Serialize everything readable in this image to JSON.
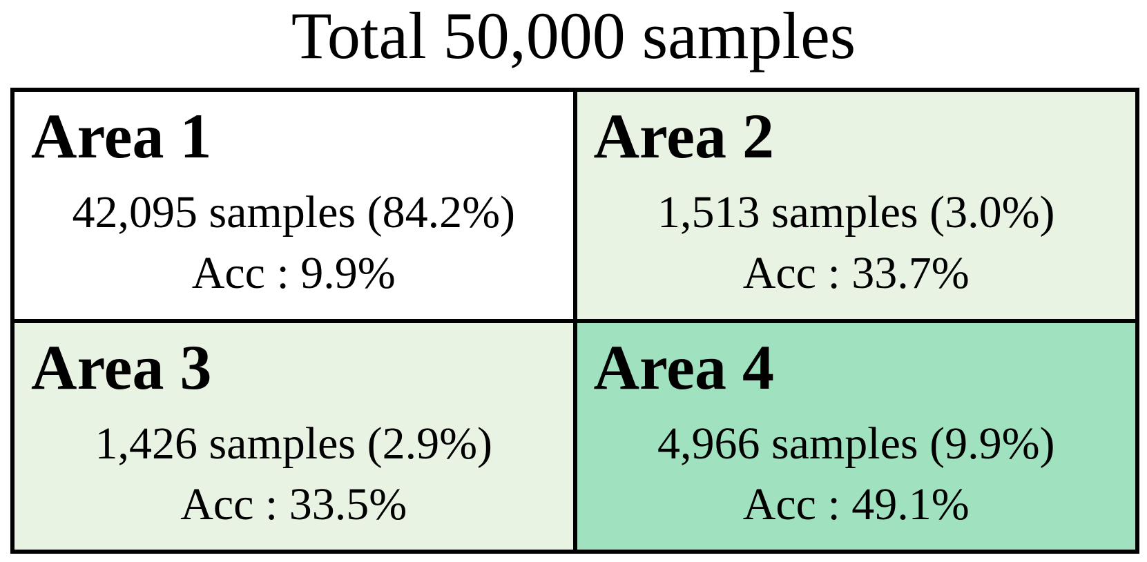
{
  "title": "Total 50,000 samples",
  "areas": [
    {
      "name": "Area 1",
      "samples": "42,095 samples (84.2%)",
      "acc": "Acc : 9.9%"
    },
    {
      "name": "Area 2",
      "samples": "1,513 samples (3.0%)",
      "acc": "Acc : 33.7%"
    },
    {
      "name": "Area 3",
      "samples": "1,426 samples (2.9%)",
      "acc": "Acc : 33.5%"
    },
    {
      "name": "Area 4",
      "samples": "4,966 samples (9.9%)",
      "acc": "Acc : 49.1%"
    }
  ]
}
